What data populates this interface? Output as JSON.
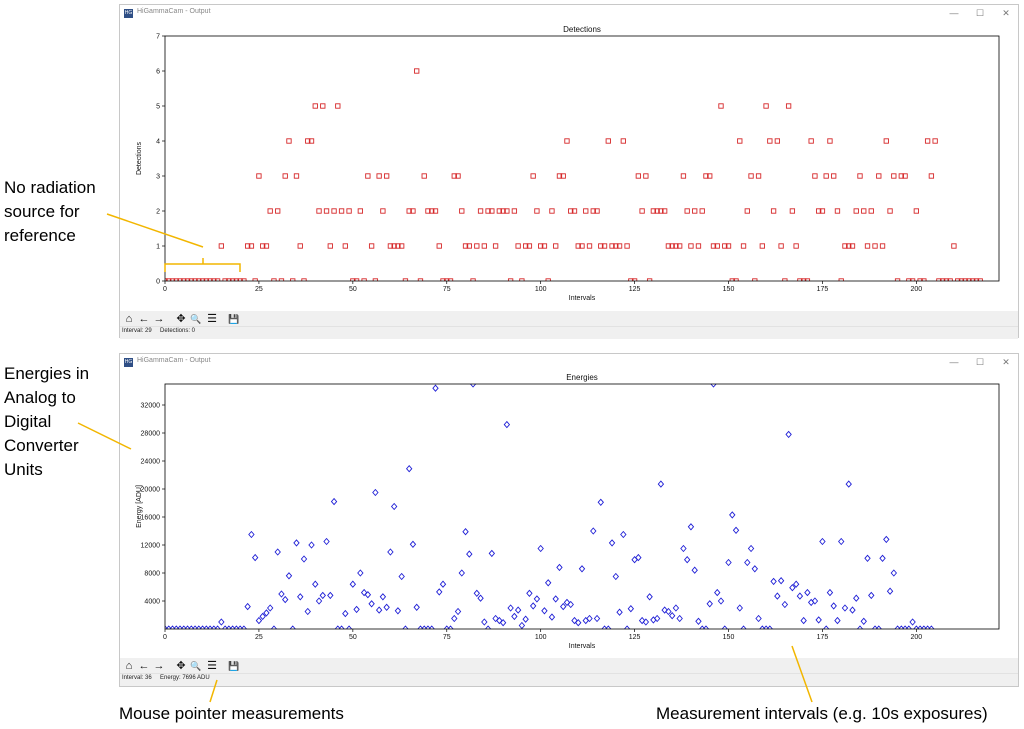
{
  "annotations": {
    "no_radiation": [
      "No radiation",
      "source for",
      "reference"
    ],
    "energies": [
      "Energies in",
      "Analog to",
      "Digital",
      "Converter",
      "Units"
    ],
    "mouse": "Mouse pointer measurements",
    "intervals": "Measurement intervals (e.g. 10s exposures)"
  },
  "windows": [
    {
      "title": "HiGammaCam - Output",
      "app_icon": "HG",
      "controls": {
        "minimize": "—",
        "maximize": "☐",
        "close": "✕"
      },
      "toolbar": {
        "home": "⌂",
        "back": "←",
        "forward": "→",
        "pan": "✥",
        "zoom": "🔍",
        "configure": "☰",
        "save": "💾"
      },
      "status": {
        "interval": "Interval: 29",
        "value": "Detections: 0"
      }
    },
    {
      "title": "HiGammaCam - Output",
      "app_icon": "HG",
      "controls": {
        "minimize": "—",
        "maximize": "☐",
        "close": "✕"
      },
      "toolbar": {
        "home": "⌂",
        "back": "←",
        "forward": "→",
        "pan": "✥",
        "zoom": "🔍",
        "configure": "☰",
        "save": "💾"
      },
      "status": {
        "interval": "Interval: 36",
        "value": "Energy: 7696 ADU"
      }
    }
  ],
  "chart_data": [
    {
      "type": "scatter",
      "title": "Detections",
      "xlabel": "Intervals",
      "ylabel": "Detections",
      "xlim": [
        0,
        222
      ],
      "ylim": [
        0,
        7
      ],
      "x_ticks": [
        0,
        25,
        50,
        75,
        100,
        125,
        150,
        175,
        200
      ],
      "y_ticks": [
        0,
        1,
        2,
        3,
        4,
        5,
        6,
        7
      ],
      "marker": "square",
      "color": "#d62728",
      "values": [
        0,
        0,
        0,
        0,
        0,
        0,
        0,
        0,
        0,
        0,
        0,
        0,
        0,
        0,
        0,
        1,
        0,
        0,
        0,
        0,
        0,
        0,
        1,
        1,
        0,
        3,
        1,
        1,
        2,
        0,
        2,
        0,
        3,
        4,
        0,
        3,
        1,
        0,
        4,
        4,
        5,
        2,
        5,
        2,
        1,
        2,
        5,
        2,
        1,
        2,
        0,
        0,
        2,
        0,
        3,
        1,
        0,
        3,
        2,
        3,
        1,
        1,
        1,
        1,
        0,
        2,
        2,
        6,
        0,
        3,
        2,
        2,
        2,
        1,
        0,
        0,
        0,
        3,
        3,
        2,
        1,
        1,
        0,
        1,
        2,
        1,
        2,
        2,
        1,
        2,
        2,
        2,
        0,
        2,
        1,
        0,
        1,
        1,
        3,
        2,
        1,
        1,
        0,
        2,
        1,
        3,
        3,
        4,
        2,
        2,
        1,
        1,
        2,
        1,
        2,
        2,
        1,
        1,
        4,
        1,
        1,
        1,
        4,
        1,
        0,
        0,
        3,
        2,
        3,
        0,
        2,
        2,
        2,
        2,
        1,
        1,
        1,
        1,
        3,
        2,
        1,
        2,
        1,
        2,
        3,
        3,
        1,
        1,
        5,
        1,
        1,
        0,
        0,
        4,
        1,
        2,
        3,
        0,
        3,
        1,
        5,
        4,
        2,
        4,
        1,
        0,
        5,
        2,
        1,
        0,
        0,
        0,
        4,
        3,
        2,
        2,
        3,
        4,
        3,
        2,
        0,
        1,
        1,
        1,
        2,
        3,
        2,
        1,
        2,
        1,
        3,
        1,
        4,
        2,
        3,
        0,
        3,
        3,
        0,
        0,
        2,
        0,
        0,
        4,
        3,
        4,
        0,
        0,
        0,
        0,
        1,
        0,
        0,
        0,
        0,
        0,
        0,
        0
      ]
    },
    {
      "type": "scatter",
      "title": "Energies",
      "xlabel": "Intervals",
      "ylabel": "Energy [ADU]",
      "xlim": [
        0,
        222
      ],
      "ylim": [
        0,
        35000
      ],
      "x_ticks": [
        0,
        25,
        50,
        75,
        100,
        125,
        150,
        175,
        200
      ],
      "y_ticks": [
        4000,
        8000,
        12000,
        16000,
        20000,
        24000,
        28000,
        32000
      ],
      "marker": "diamond",
      "color": "#1f1fd6",
      "values": [
        0,
        0,
        0,
        0,
        0,
        0,
        0,
        0,
        0,
        0,
        0,
        0,
        0,
        0,
        0,
        1000,
        0,
        0,
        0,
        0,
        0,
        0,
        3200,
        13500,
        10200,
        1200,
        1800,
        2300,
        3000,
        0,
        11000,
        5000,
        4200,
        7600,
        0,
        12300,
        4600,
        10000,
        2500,
        12000,
        6400,
        4000,
        4800,
        12500,
        4800,
        18200,
        0,
        0,
        2200,
        0,
        6400,
        2800,
        8000,
        5200,
        4900,
        3600,
        19500,
        2700,
        4600,
        3100,
        11000,
        17500,
        2600,
        7500,
        0,
        22900,
        12100,
        3100,
        0,
        0,
        0,
        0,
        34400,
        5300,
        6400,
        0,
        0,
        1500,
        2500,
        8000,
        13900,
        10700,
        35000,
        5100,
        4400,
        1000,
        0,
        10800,
        1500,
        1200,
        900,
        29200,
        3000,
        1800,
        2700,
        500,
        1400,
        5100,
        3300,
        4300,
        11500,
        2600,
        6600,
        1700,
        4300,
        8800,
        3200,
        3800,
        3500,
        1200,
        900,
        8600,
        1200,
        1500,
        14000,
        1500,
        18100,
        0,
        0,
        12300,
        7500,
        2400,
        13500,
        0,
        2900,
        9900,
        10200,
        1200,
        1000,
        4600,
        1300,
        1500,
        20700,
        2700,
        2500,
        1900,
        3000,
        1500,
        11500,
        9900,
        14600,
        8400,
        1100,
        0,
        0,
        3600,
        35000,
        5200,
        4000,
        0,
        9500,
        16300,
        14100,
        3000,
        0,
        9500,
        11500,
        8600,
        1500,
        0,
        0,
        0,
        6800,
        4700,
        6900,
        3500,
        27800,
        5900,
        6400,
        4700,
        1200,
        5200,
        3800,
        4000,
        1300,
        12500,
        0,
        5200,
        3300,
        1200,
        12500,
        3000,
        20700,
        2700,
        4400,
        0,
        1100,
        10100,
        4800,
        0,
        0,
        10100,
        12800,
        5400,
        8000,
        0,
        0,
        0,
        0,
        1000,
        0,
        0,
        0,
        0,
        0
      ]
    }
  ]
}
